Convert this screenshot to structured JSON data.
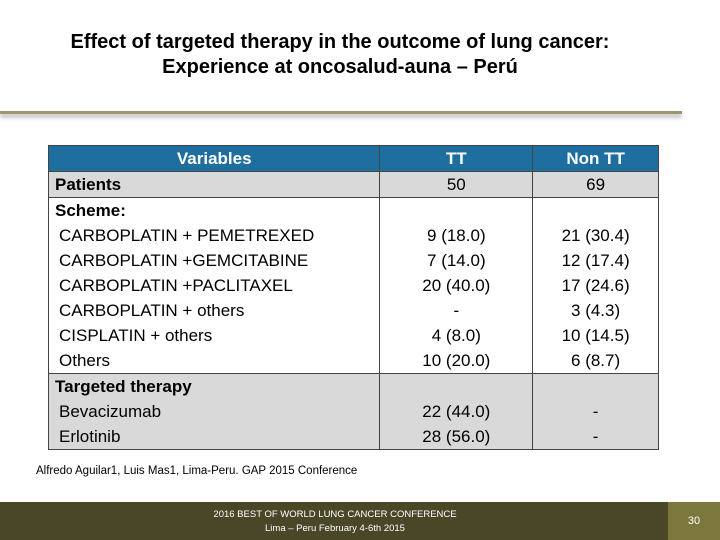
{
  "header": {
    "title": "Effect of targeted therapy in the  outcome of lung cancer: Experience at oncosalud-auna – Perú"
  },
  "table": {
    "columns": [
      "Variables",
      "TT",
      "Non TT"
    ],
    "sections": [
      {
        "label": "Patients",
        "values": [
          "50",
          "69"
        ]
      },
      {
        "label": "Scheme:",
        "rows": [
          [
            "CARBOPLATIN + PEMETREXED",
            "9 (18.0)",
            "21 (30.4)"
          ],
          [
            "CARBOPLATIN +GEMCITABINE",
            "7 (14.0)",
            "12 (17.4)"
          ],
          [
            "CARBOPLATIN +PACLITAXEL",
            "20 (40.0)",
            "17 (24.6)"
          ],
          [
            "CARBOPLATIN + others",
            "-",
            "3 (4.3)"
          ],
          [
            "CISPLATIN + others",
            "4 (8.0)",
            "10 (14.5)"
          ],
          [
            "Others",
            "10 (20.0)",
            "6 (8.7)"
          ]
        ]
      },
      {
        "label": "Targeted therapy",
        "rows": [
          [
            "Bevacizumab",
            "22 (44.0)",
            "-"
          ],
          [
            "Erlotinib",
            "28 (56.0)",
            "-"
          ]
        ]
      }
    ]
  },
  "footnote": "Alfredo Aguilar1, Luis Mas1, Lima-Peru. GAP 2015 Conference",
  "footer": {
    "line1": "2016 BEST OF WORLD LUNG CANCER CONFERENCE",
    "line2": "Lima – Peru February 4-6th 2015",
    "page": "30"
  }
}
